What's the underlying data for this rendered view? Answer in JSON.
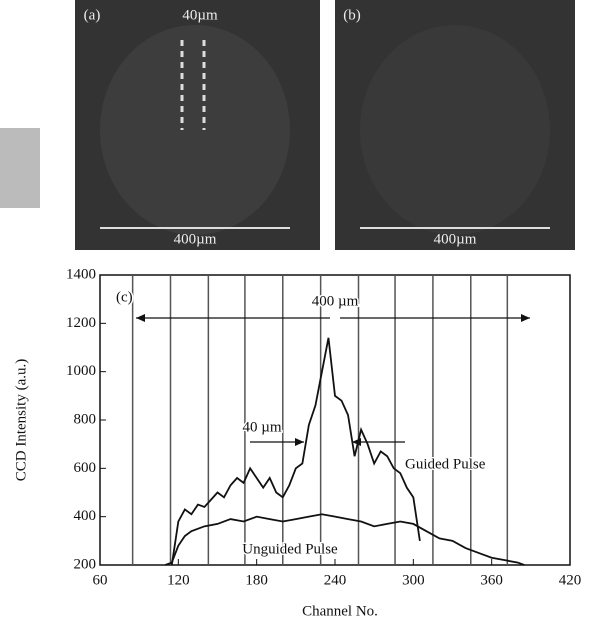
{
  "panels": [
    {
      "label": "(a)",
      "scale_text": "400µm",
      "inset_text": "40µm"
    },
    {
      "label": "(b)",
      "scale_text": "400µm"
    }
  ],
  "chart_data": {
    "type": "line",
    "x_label": "Channel No.",
    "y_label": "CCD Intensity (a.u.)",
    "annotations": [
      "(c)",
      "400 µm",
      "40 µm"
    ],
    "xlim": [
      60,
      420
    ],
    "xticks": [
      60,
      120,
      180,
      240,
      300,
      360,
      420
    ],
    "ylim": [
      200,
      1400
    ],
    "yticks": [
      200,
      400,
      600,
      800,
      1000,
      1200,
      1400
    ],
    "vertical_lines": [
      85,
      114,
      143,
      171,
      200,
      229,
      258,
      286,
      315,
      344,
      372
    ],
    "series": [
      {
        "name": "Guided Pulse",
        "color": "#111111",
        "x": [
          115,
          120,
          125,
          130,
          135,
          140,
          145,
          150,
          155,
          160,
          165,
          170,
          175,
          180,
          185,
          190,
          195,
          200,
          205,
          210,
          215,
          220,
          225,
          230,
          235,
          240,
          245,
          250,
          255,
          260,
          265,
          270,
          275,
          280,
          285,
          290,
          295,
          300,
          305
        ],
        "values": [
          200,
          380,
          430,
          410,
          450,
          440,
          470,
          500,
          480,
          530,
          560,
          540,
          600,
          560,
          520,
          560,
          500,
          480,
          530,
          600,
          620,
          780,
          860,
          1000,
          1140,
          900,
          880,
          820,
          650,
          760,
          700,
          620,
          670,
          650,
          600,
          580,
          520,
          480,
          300
        ]
      },
      {
        "name": "Unguided Pulse",
        "color": "#111111",
        "x": [
          110,
          115,
          120,
          125,
          130,
          140,
          150,
          160,
          170,
          180,
          190,
          200,
          210,
          220,
          230,
          240,
          250,
          260,
          270,
          280,
          290,
          300,
          310,
          320,
          330,
          340,
          350,
          360,
          370,
          380,
          385
        ],
        "values": [
          200,
          210,
          280,
          320,
          340,
          360,
          370,
          390,
          380,
          400,
          390,
          380,
          390,
          400,
          410,
          400,
          390,
          380,
          360,
          370,
          380,
          370,
          340,
          310,
          300,
          270,
          250,
          230,
          220,
          210,
          200
        ]
      }
    ]
  }
}
